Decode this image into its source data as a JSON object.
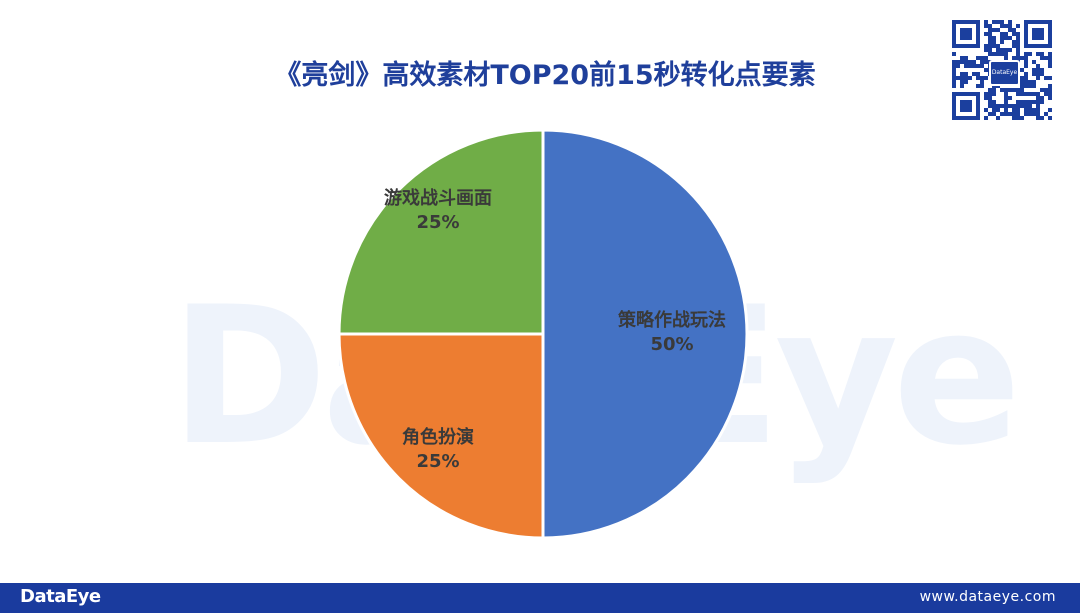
{
  "watermark_text": "DataEye",
  "qr_logo_text": "DataEye",
  "footer": {
    "brand": "DataEye",
    "url": "www.dataeye.com"
  },
  "colors": {
    "title": "#1f3f9b",
    "footer_bg": "#1a3b9e"
  },
  "chart_data": {
    "type": "pie",
    "title": "《亮剑》高效素材TOP20前15秒转化点要素",
    "slices": [
      {
        "label": "策略作战玩法",
        "value": 50,
        "value_label": "50%",
        "color": "#4472c4"
      },
      {
        "label": "角色扮演",
        "value": 25,
        "value_label": "25%",
        "color": "#ed7d31"
      },
      {
        "label": "游戏战斗画面",
        "value": 25,
        "value_label": "25%",
        "color": "#70ad47"
      }
    ],
    "start_angle": "12 o'clock",
    "direction": "clockwise",
    "legend": "none"
  }
}
